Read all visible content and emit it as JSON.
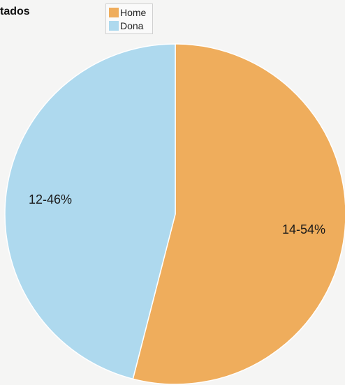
{
  "chart_data": {
    "type": "pie",
    "title": "tados",
    "legend_position": "top",
    "slices": [
      {
        "name": "Home",
        "value": 54,
        "label": "14-54%",
        "color": "#efad5c"
      },
      {
        "name": "Dona",
        "value": 46,
        "label": "12-46%",
        "color": "#aed9ee"
      }
    ]
  }
}
